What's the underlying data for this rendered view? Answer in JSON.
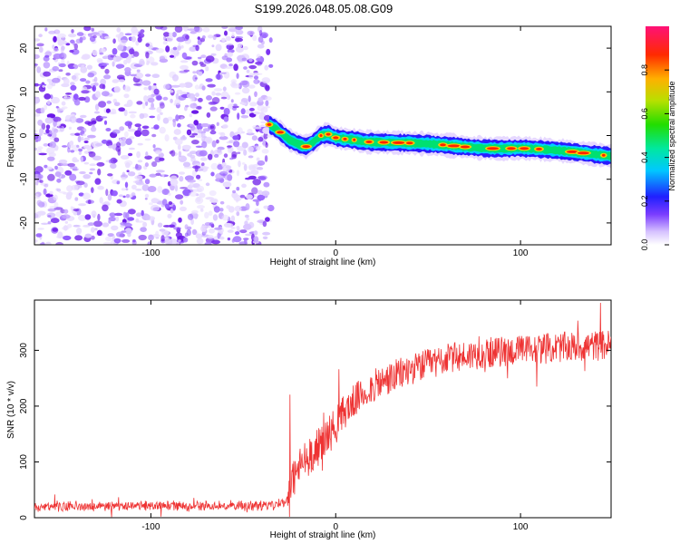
{
  "title": "S199.2026.048.05.08.G09",
  "chart_data": [
    {
      "type": "heatmap",
      "name": "spectrogram",
      "xlabel": "Height of straight line (km)",
      "ylabel": "Frequency (Hz)",
      "xlim": [
        -163,
        149
      ],
      "ylim": [
        -25,
        25
      ],
      "xticks": [
        -100,
        0,
        100
      ],
      "xtick_labels": [
        "-100",
        "0",
        "100"
      ],
      "yticks": [
        -20,
        -10,
        0,
        10,
        20
      ],
      "ytick_labels": [
        "-20",
        "-10",
        "0",
        "10",
        "20"
      ],
      "noise_region_x": [
        -163,
        -35
      ],
      "signal_center": {
        "x": [
          -36,
          -32,
          -28,
          -25,
          -20,
          -16,
          -12,
          -8,
          -4,
          0,
          5,
          10,
          15,
          20,
          30,
          40,
          50,
          60,
          70,
          80,
          90,
          100,
          110,
          120,
          130,
          140,
          149
        ],
        "freq_hz": [
          2.5,
          1.5,
          0.0,
          -1.0,
          -2.0,
          -2.5,
          -1.5,
          0.0,
          0.3,
          -0.5,
          -0.8,
          -1.0,
          -1.4,
          -1.5,
          -1.6,
          -1.7,
          -1.9,
          -2.2,
          -2.6,
          -2.9,
          -3.0,
          -2.9,
          -3.1,
          -3.4,
          -3.8,
          -4.3,
          -4.7
        ]
      },
      "colorbar": {
        "label": "Normalized spectral amplitude",
        "ticks": [
          0.0,
          0.2,
          0.4,
          0.6,
          0.8
        ],
        "tick_labels": [
          "0.0",
          "0.2",
          "0.4",
          "0.6",
          "0.8"
        ],
        "range": [
          0,
          1
        ]
      }
    },
    {
      "type": "line",
      "name": "snr",
      "xlabel": "Height of straight line (km)",
      "ylabel": "SNR (10 * v/v)",
      "xlim": [
        -163,
        149
      ],
      "ylim": [
        0,
        390
      ],
      "xticks": [
        -100,
        0,
        100
      ],
      "xtick_labels": [
        "-100",
        "0",
        "100"
      ],
      "yticks": [
        0,
        100,
        200,
        300
      ],
      "ytick_labels": [
        "0",
        "100",
        "200",
        "300"
      ],
      "color": "#ee3333",
      "trend": {
        "x": [
          -163,
          -40,
          -30,
          -25,
          -24,
          -20,
          -15,
          -10,
          -5,
          0,
          5,
          10,
          20,
          30,
          40,
          60,
          80,
          100,
          120,
          140,
          149
        ],
        "y": [
          20,
          22,
          25,
          35,
          60,
          90,
          110,
          125,
          145,
          165,
          190,
          210,
          235,
          250,
          265,
          285,
          295,
          300,
          305,
          308,
          310
        ]
      }
    }
  ],
  "colors": {
    "line": "#ee3333",
    "axis": "#000000",
    "noise": "#7a3cff"
  }
}
